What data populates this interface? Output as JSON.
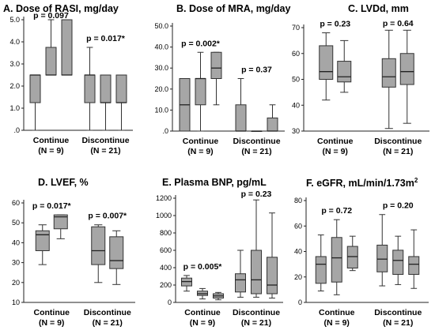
{
  "figure": {
    "group_labels": [
      "Continue",
      "Discontinue"
    ],
    "group_n": [
      "(N = 9)",
      "(N = 21)"
    ]
  },
  "chart_data": [
    {
      "type": "box",
      "title": "A. Dose of RASI, mg/day",
      "ylim": [
        0,
        5.0
      ],
      "yticks": [
        0,
        1.0,
        2.0,
        3.0,
        4.0,
        5.0
      ],
      "ytick_labels": [
        ".0",
        "1.0",
        "2.0",
        "3.0",
        "4.0",
        "5.0"
      ],
      "p_values": [
        "p = 0.097",
        "p = 0.017*"
      ],
      "groups": [
        {
          "name": "Continue",
          "n_label": "(N = 9)",
          "boxes": [
            {
              "min": 0,
              "q1": 1.25,
              "median": 2.5,
              "q3": 2.5,
              "max": 2.5
            },
            {
              "min": 2.5,
              "q1": 2.5,
              "median": 2.5,
              "q3": 3.75,
              "max": 5.0
            },
            {
              "min": 2.5,
              "q1": 2.5,
              "median": 2.5,
              "q3": 5.0,
              "max": 5.0
            }
          ]
        },
        {
          "name": "Discontinue",
          "n_label": "(N = 21)",
          "boxes": [
            {
              "min": 0,
              "q1": 1.25,
              "median": 2.5,
              "q3": 2.5,
              "max": 3.75
            },
            {
              "min": 0,
              "q1": 1.25,
              "median": 1.25,
              "q3": 2.5,
              "max": 2.5
            },
            {
              "min": 0,
              "q1": 1.25,
              "median": 1.25,
              "q3": 2.5,
              "max": 2.5
            }
          ]
        }
      ]
    },
    {
      "type": "box",
      "title": "B. Dose of MRA, mg/day",
      "ylim": [
        0,
        50
      ],
      "yticks": [
        0,
        10,
        20,
        30,
        40,
        50
      ],
      "ytick_labels": [
        ".0",
        "10.0",
        "20.0",
        "30.0",
        "40.0",
        "50.0"
      ],
      "p_values": [
        "p = 0.002*",
        "p = 0.37"
      ],
      "groups": [
        {
          "name": "Continue",
          "n_label": "(N = 9)",
          "boxes": [
            {
              "min": 0,
              "q1": 0,
              "median": 12.5,
              "q3": 25,
              "max": 25
            },
            {
              "min": 0,
              "q1": 12.5,
              "median": 25,
              "q3": 25,
              "max": 37.5
            },
            {
              "min": 12.5,
              "q1": 25,
              "median": 30,
              "q3": 37.5,
              "max": 37.5
            }
          ]
        },
        {
          "name": "Discontinue",
          "n_label": "(N = 21)",
          "boxes": [
            {
              "min": 0,
              "q1": 0,
              "median": 0,
              "q3": 12.5,
              "max": 25
            },
            {
              "min": 0,
              "q1": 0,
              "median": 0,
              "q3": 0,
              "max": 0
            },
            {
              "min": 0,
              "q1": 0,
              "median": 0,
              "q3": 6.25,
              "max": 12.5
            }
          ]
        }
      ]
    },
    {
      "type": "box",
      "title": "C. LVDd, mm",
      "ylim": [
        30,
        70
      ],
      "yticks": [
        30,
        40,
        50,
        60,
        70
      ],
      "ytick_labels": [
        "30",
        "40",
        "50",
        "60",
        "70"
      ],
      "p_values": [
        "p = 0.23",
        "p = 0.64"
      ],
      "groups": [
        {
          "name": "Continue",
          "n_label": "(N = 9)",
          "boxes": [
            {
              "min": 42,
              "q1": 50,
              "median": 53,
              "q3": 63,
              "max": 68
            },
            {
              "min": 45,
              "q1": 49,
              "median": 51,
              "q3": 57,
              "max": 65
            }
          ]
        },
        {
          "name": "Discontinue",
          "n_label": "(N = 21)",
          "boxes": [
            {
              "min": 31,
              "q1": 47,
              "median": 51,
              "q3": 58,
              "max": 69
            },
            {
              "min": 33,
              "q1": 48,
              "median": 53,
              "q3": 60,
              "max": 69
            }
          ]
        }
      ]
    },
    {
      "type": "box",
      "title": "D. LVEF, %",
      "ylim": [
        10,
        60
      ],
      "yticks": [
        10,
        20,
        30,
        40,
        50,
        60
      ],
      "ytick_labels": [
        "10",
        "20",
        "30",
        "40",
        "50",
        "60"
      ],
      "p_values": [
        "p = 0.017*",
        "p = 0.007*"
      ],
      "groups": [
        {
          "name": "Continue",
          "n_label": "(N = 9)",
          "boxes": [
            {
              "min": 29,
              "q1": 36,
              "median": 44,
              "q3": 46,
              "max": 49
            },
            {
              "min": 42,
              "q1": 47,
              "median": 53,
              "q3": 54,
              "max": 54
            }
          ]
        },
        {
          "name": "Discontinue",
          "n_label": "(N = 21)",
          "boxes": [
            {
              "min": 20,
              "q1": 29,
              "median": 36,
              "q3": 48,
              "max": 49
            },
            {
              "min": 19,
              "q1": 27,
              "median": 31,
              "q3": 43,
              "max": 46
            }
          ]
        }
      ]
    },
    {
      "type": "box",
      "title": "E. Plasma BNP, pg/mL",
      "ylim": [
        0,
        1200
      ],
      "yticks": [
        0,
        200,
        400,
        600,
        800,
        1000,
        1200
      ],
      "ytick_labels": [
        "0",
        "200",
        "400",
        "600",
        "800",
        "1000",
        "1200"
      ],
      "p_values": [
        "p = 0.005*",
        "p = 0.23"
      ],
      "groups": [
        {
          "name": "Continue",
          "n_label": "(N = 9)",
          "boxes": [
            {
              "min": 130,
              "q1": 190,
              "median": 240,
              "q3": 280,
              "max": 310
            },
            {
              "min": 40,
              "q1": 80,
              "median": 100,
              "q3": 130,
              "max": 160
            },
            {
              "min": 30,
              "q1": 50,
              "median": 75,
              "q3": 100,
              "max": 115
            }
          ]
        },
        {
          "name": "Discontinue",
          "n_label": "(N = 21)",
          "boxes": [
            {
              "min": 60,
              "q1": 120,
              "median": 260,
              "q3": 330,
              "max": 600
            },
            {
              "min": 60,
              "q1": 100,
              "median": 260,
              "q3": 600,
              "max": 1180
            },
            {
              "min": 50,
              "q1": 100,
              "median": 200,
              "q3": 520,
              "max": 1030
            }
          ]
        }
      ]
    },
    {
      "type": "box",
      "title": "F. eGFR, mL/min/1.73m",
      "title_superscript": "2",
      "ylim": [
        0,
        80
      ],
      "yticks": [
        0,
        20,
        40,
        60,
        80
      ],
      "ytick_labels": [
        "0",
        "20",
        "40",
        "60",
        "80"
      ],
      "p_values": [
        "p = 0.72",
        "p = 0.20"
      ],
      "groups": [
        {
          "name": "Continue",
          "n_label": "(N = 9)",
          "boxes": [
            {
              "min": 9,
              "q1": 15,
              "median": 30,
              "q3": 36,
              "max": 53
            },
            {
              "min": 6,
              "q1": 16,
              "median": 35,
              "q3": 51,
              "max": 65
            },
            {
              "min": 25,
              "q1": 27,
              "median": 36,
              "q3": 44,
              "max": 52
            }
          ]
        },
        {
          "name": "Discontinue",
          "n_label": "(N = 21)",
          "boxes": [
            {
              "min": 13,
              "q1": 24,
              "median": 34,
              "q3": 45,
              "max": 69
            },
            {
              "min": 14,
              "q1": 22,
              "median": 33,
              "q3": 41,
              "max": 52
            },
            {
              "min": 11,
              "q1": 22,
              "median": 30,
              "q3": 36,
              "max": 57
            }
          ]
        }
      ]
    }
  ]
}
